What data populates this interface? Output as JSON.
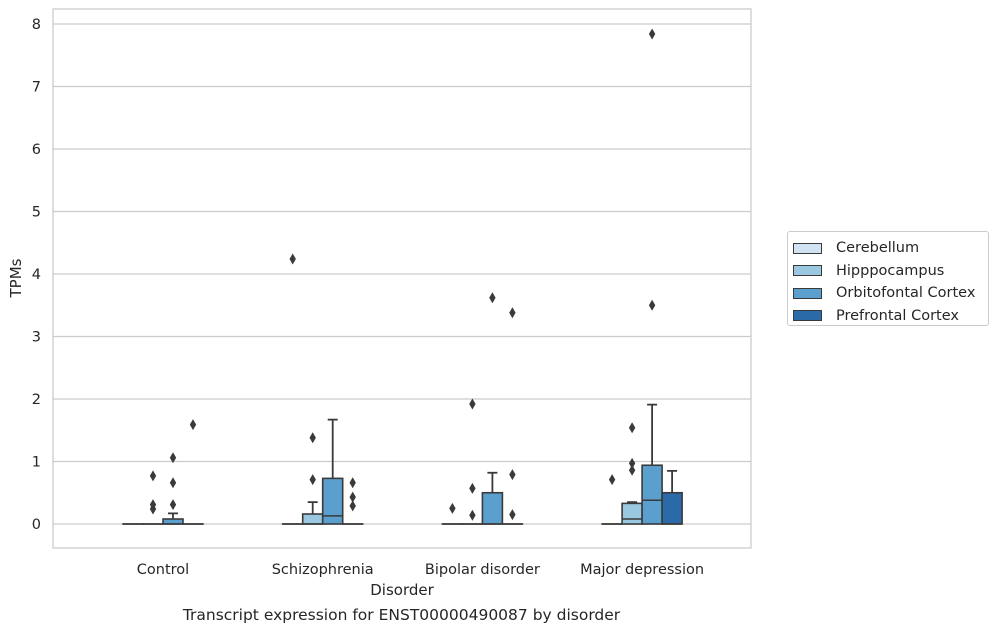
{
  "caption": "Transcript expression for ENST00000490087 by disorder",
  "chart_data": {
    "type": "box",
    "xlabel": "Disorder",
    "ylabel": "TPMs",
    "ylim": [
      -0.38,
      8.22
    ],
    "yticks": [
      "0",
      "1",
      "2",
      "3",
      "4",
      "5",
      "6",
      "7",
      "8"
    ],
    "grid": "horizontal",
    "legend_position": "right",
    "categories": [
      "Control",
      "Schizophrenia",
      "Bipolar disorder",
      "Major depression"
    ],
    "series": [
      {
        "name": "Cerebellum",
        "color": "#d1e2f2",
        "boxes": [
          {
            "category": "Control",
            "q1": 0,
            "median": 0,
            "q3": 0,
            "whisker_low": 0,
            "whisker_high": 0,
            "outliers": []
          },
          {
            "category": "Schizophrenia",
            "q1": 0,
            "median": 0,
            "q3": 0,
            "whisker_low": 0,
            "whisker_high": 0,
            "outliers": [
              4.24
            ]
          },
          {
            "category": "Bipolar disorder",
            "q1": 0,
            "median": 0,
            "q3": 0,
            "whisker_low": 0,
            "whisker_high": 0,
            "outliers": [
              0.25
            ]
          },
          {
            "category": "Major depression",
            "q1": 0,
            "median": 0,
            "q3": 0,
            "whisker_low": 0,
            "whisker_high": 0,
            "outliers": [
              0.71
            ]
          }
        ]
      },
      {
        "name": "Hipppocampus",
        "color": "#9ac8e0",
        "boxes": [
          {
            "category": "Control",
            "q1": 0,
            "median": 0,
            "q3": 0,
            "whisker_low": 0,
            "whisker_high": 0,
            "outliers": [
              0.77,
              0.31,
              0.24
            ]
          },
          {
            "category": "Schizophrenia",
            "q1": 0,
            "median": 0,
            "q3": 0.16,
            "whisker_low": 0,
            "whisker_high": 0.35,
            "outliers": [
              1.38,
              0.71
            ]
          },
          {
            "category": "Bipolar disorder",
            "q1": 0,
            "median": 0,
            "q3": 0,
            "whisker_low": 0,
            "whisker_high": 0,
            "outliers": [
              1.92,
              0.57,
              0.14
            ]
          },
          {
            "category": "Major depression",
            "q1": 0,
            "median": 0.08,
            "q3": 0.33,
            "whisker_low": 0,
            "whisker_high": 0.35,
            "outliers": [
              1.54,
              0.97,
              0.86
            ]
          }
        ]
      },
      {
        "name": "Orbitofontal Cortex",
        "color": "#5b9fce",
        "boxes": [
          {
            "category": "Control",
            "q1": 0,
            "median": 0,
            "q3": 0.08,
            "whisker_low": 0,
            "whisker_high": 0.17,
            "outliers": [
              1.06,
              0.66,
              0.31
            ]
          },
          {
            "category": "Schizophrenia",
            "q1": 0,
            "median": 0.13,
            "q3": 0.73,
            "whisker_low": 0,
            "whisker_high": 1.67,
            "outliers": []
          },
          {
            "category": "Bipolar disorder",
            "q1": 0,
            "median": 0,
            "q3": 0.5,
            "whisker_low": 0,
            "whisker_high": 0.82,
            "outliers": [
              3.62
            ]
          },
          {
            "category": "Major depression",
            "q1": 0,
            "median": 0.38,
            "q3": 0.94,
            "whisker_low": 0,
            "whisker_high": 1.91,
            "outliers": [
              7.84,
              3.5
            ]
          }
        ]
      },
      {
        "name": "Prefrontal Cortex",
        "color": "#2a6aa8",
        "boxes": [
          {
            "category": "Control",
            "q1": 0,
            "median": 0,
            "q3": 0,
            "whisker_low": 0,
            "whisker_high": 0,
            "outliers": [
              1.59
            ]
          },
          {
            "category": "Schizophrenia",
            "q1": 0,
            "median": 0,
            "q3": 0,
            "whisker_low": 0,
            "whisker_high": 0,
            "outliers": [
              0.66,
              0.43,
              0.29
            ]
          },
          {
            "category": "Bipolar disorder",
            "q1": 0,
            "median": 0,
            "q3": 0,
            "whisker_low": 0,
            "whisker_high": 0,
            "outliers": [
              3.38,
              0.79,
              0.15
            ]
          },
          {
            "category": "Major depression",
            "q1": 0,
            "median": 0,
            "q3": 0.5,
            "whisker_low": 0,
            "whisker_high": 0.85,
            "outliers": []
          }
        ]
      }
    ]
  }
}
